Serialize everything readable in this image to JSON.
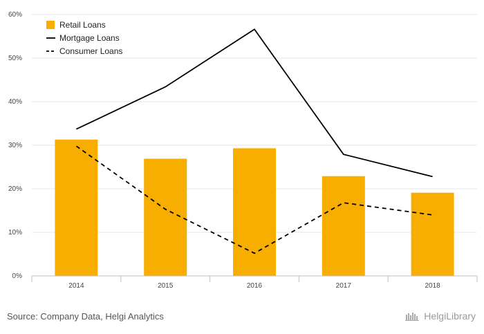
{
  "chart_data": {
    "type": "bar",
    "categories": [
      "2014",
      "2015",
      "2016",
      "2017",
      "2018"
    ],
    "series": [
      {
        "name": "Retail Loans",
        "type": "bar",
        "color": "#f7ae00",
        "values": [
          31.3,
          26.9,
          29.3,
          22.9,
          19.1
        ]
      },
      {
        "name": "Mortgage Loans",
        "type": "line",
        "style": "solid",
        "color": "#000000",
        "values": [
          33.7,
          43.4,
          56.6,
          27.9,
          22.8
        ]
      },
      {
        "name": "Consumer Loans",
        "type": "line",
        "style": "dashed",
        "color": "#000000",
        "values": [
          29.8,
          15.3,
          5.2,
          16.8,
          14.0
        ]
      }
    ],
    "ylim": [
      0,
      60
    ],
    "yticks": [
      "0%",
      "10%",
      "20%",
      "30%",
      "40%",
      "50%",
      "60%"
    ],
    "grid": true,
    "legend_position": "top-left",
    "xlabel": "",
    "ylabel": ""
  },
  "footer": {
    "source": "Source: Company Data, Helgi Analytics",
    "brand": "HelgiLibrary"
  }
}
